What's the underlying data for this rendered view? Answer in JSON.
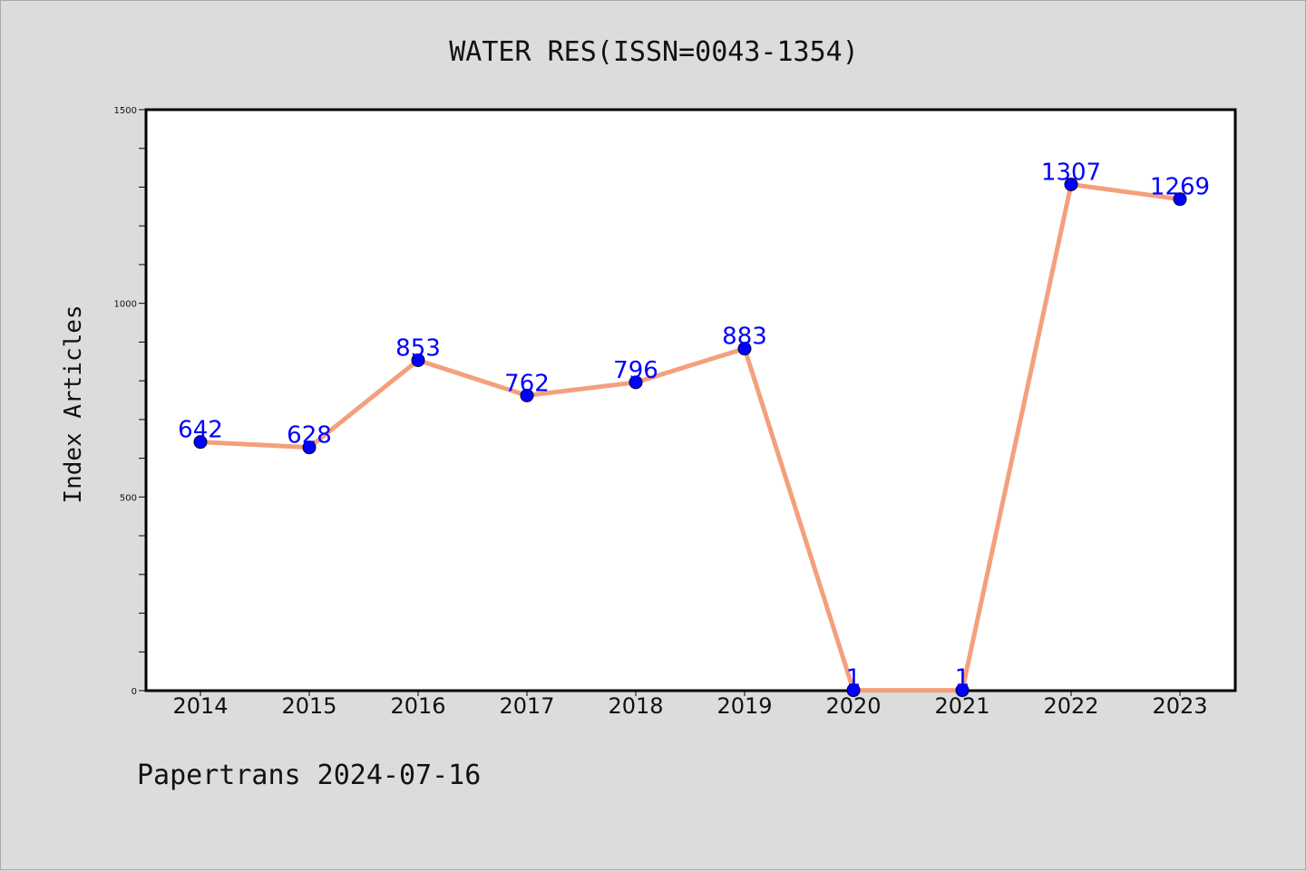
{
  "chart_data": {
    "type": "line",
    "title": "WATER RES(ISSN=0043-1354)",
    "ylabel": "Index Articles",
    "xlabel": "",
    "categories": [
      "2014",
      "2015",
      "2016",
      "2017",
      "2018",
      "2019",
      "2020",
      "2021",
      "2022",
      "2023"
    ],
    "series": [
      {
        "values": [
          642,
          628,
          853,
          762,
          796,
          883,
          1,
          1,
          1307,
          1269
        ]
      }
    ],
    "data_labels": [
      "642",
      "628",
      "853",
      "762",
      "796",
      "883",
      "1",
      "1",
      "1307",
      "1269"
    ],
    "ylim": [
      0,
      1500
    ],
    "yticks_major": [
      0,
      500,
      1000,
      1500
    ],
    "yticks_major_labels": [
      "0",
      "500",
      "1000",
      "1500"
    ],
    "yticks_minor": [
      100,
      200,
      300,
      400,
      600,
      700,
      800,
      900,
      1100,
      1200,
      1300,
      1400
    ],
    "grid": false,
    "colors": {
      "line": "#f4a07c",
      "marker": "#0000ff",
      "marker_edge": "#000033",
      "data_label": "#0000ff",
      "background": "#dcdcdc",
      "plot_background": "#ffffff",
      "axes": "#000000"
    }
  },
  "footer": {
    "text": "Papertrans 2024-07-16"
  }
}
